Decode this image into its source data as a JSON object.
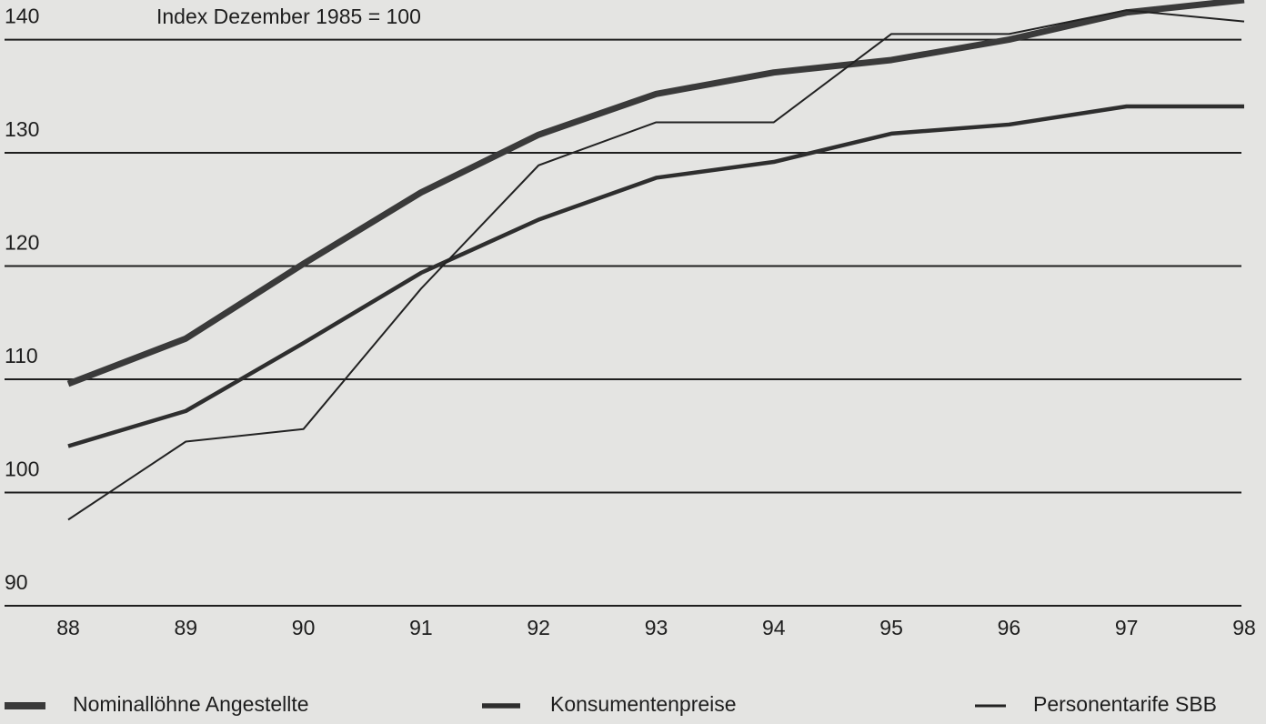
{
  "chart_data": {
    "type": "line",
    "annotation": "Index Dezember 1985 = 100",
    "categories": [
      "88",
      "89",
      "90",
      "91",
      "92",
      "93",
      "94",
      "95",
      "96",
      "97",
      "98"
    ],
    "series": [
      {
        "name": "Nominallöhne Angestellte",
        "color": "#3a3a3a",
        "values": [
          109.6,
          113.6,
          120.2,
          126.5,
          131.6,
          135.2,
          137.1,
          138.2,
          140,
          142.4,
          143.5
        ]
      },
      {
        "name": "Konsumentenpreise",
        "color": "#2e2e2e",
        "values": [
          104.1,
          107.2,
          113.2,
          119.4,
          124.1,
          127.8,
          129.2,
          131.7,
          132.5,
          134.1,
          134.1
        ]
      },
      {
        "name": "Personentarife SBB",
        "color": "#222222",
        "values": [
          97.6,
          104.5,
          105.6,
          118,
          128.9,
          132.7,
          132.7,
          140.5,
          140.5,
          142.6,
          141.6
        ]
      }
    ],
    "ylim": [
      90,
      143.5
    ],
    "yticks": [
      90,
      100,
      110,
      120,
      130,
      140
    ],
    "grid": true
  }
}
